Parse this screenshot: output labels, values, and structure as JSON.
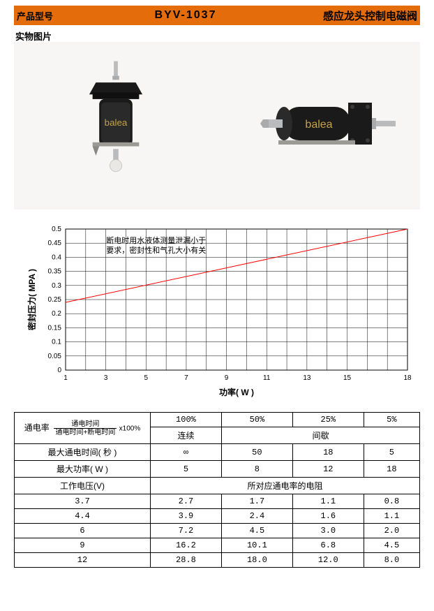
{
  "header": {
    "left_label": "产品型号",
    "model": "BYV-1037",
    "right_label": "感应龙头控制电磁阀",
    "bg_color": "#e46c0a"
  },
  "photo_label": "实物图片",
  "photo_bg": "#f7f6f4",
  "device_brand": "balea",
  "chart": {
    "type": "line",
    "title_note": "断电时用水液体测量泄漏小于\n要求，密封性和气孔大小有关",
    "x_label": "功率( W )",
    "y_label": "密封压力( MPA )",
    "x_ticks": [
      1,
      3,
      5,
      7,
      9,
      11,
      13,
      15,
      18
    ],
    "y_ticks": [
      0,
      0.05,
      0.1,
      0.15,
      0.2,
      0.25,
      0.3,
      0.35,
      0.4,
      0.45,
      0.5
    ],
    "xlim": [
      1,
      18
    ],
    "ylim": [
      0,
      0.5
    ],
    "grid_color": "#000000",
    "line_color": "#ff0000",
    "line_width": 1,
    "background_color": "#ffffff",
    "label_fontsize": 12,
    "tick_fontsize": 10,
    "data": [
      {
        "x": 1,
        "y": 0.24
      },
      {
        "x": 18,
        "y": 0.5
      }
    ]
  },
  "table": {
    "row1_label_main": "通电率",
    "row1_formula_top": "通电时间",
    "row1_formula_bot": "通电时间+断电时间",
    "row1_formula_suffix": "x100%",
    "row1_vals": [
      "100%",
      "50%",
      "25%",
      "5%"
    ],
    "row2_left": "连续",
    "row2_right": "间歇",
    "row3_label": "最大通电时间( 秒 )",
    "row3_vals": [
      "∞",
      "50",
      "18",
      "5"
    ],
    "row4_label": "最大功率( W )",
    "row4_vals": [
      "5",
      "8",
      "12",
      "18"
    ],
    "row5_left": "工作电压(V)",
    "row5_right": "所对应通电率的电阻",
    "voltage_rows": [
      {
        "v": "3.7",
        "r": [
          "2.7",
          "1.7",
          "1.1",
          "0.8"
        ]
      },
      {
        "v": "4.4",
        "r": [
          "3.9",
          "2.4",
          "1.6",
          "1.1"
        ]
      },
      {
        "v": "6",
        "r": [
          "7.2",
          "4.5",
          "3.0",
          "2.0"
        ]
      },
      {
        "v": "9",
        "r": [
          "16.2",
          "10.1",
          "6.8",
          "4.5"
        ]
      },
      {
        "v": "12",
        "r": [
          "28.8",
          "18.0",
          "12.0",
          "8.0"
        ]
      }
    ]
  }
}
